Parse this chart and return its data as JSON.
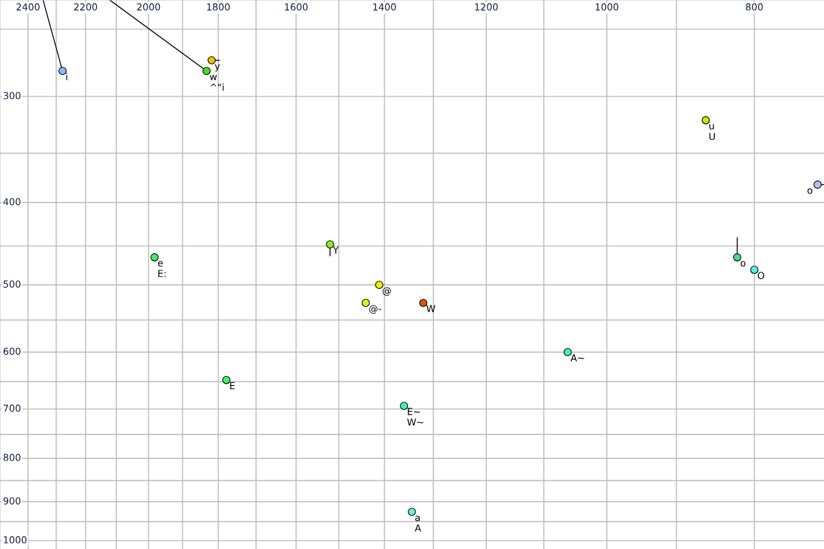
{
  "chart_data": {
    "type": "scatter",
    "log": "xy",
    "grid": true,
    "marker": "circle",
    "xlim": [
      2504,
      720
    ],
    "ylim": [
      1023,
      231
    ],
    "xticks": [
      2400,
      {
        "value": 2300,
        "label": null
      },
      2200,
      {
        "value": 2100,
        "label": null
      },
      2000,
      {
        "value": 1900,
        "label": null
      },
      1800,
      {
        "value": 1700,
        "label": null
      },
      1600,
      {
        "value": 1500,
        "label": null
      },
      1400,
      {
        "value": 1300,
        "label": null
      },
      1200,
      {
        "value": 1100,
        "label": null
      },
      1000,
      {
        "value": 900,
        "label": null
      },
      800
    ],
    "yticks": [
      {
        "value": 250,
        "label": null
      },
      300,
      {
        "value": 350,
        "label": null
      },
      400,
      {
        "value": 450,
        "label": null
      },
      500,
      {
        "value": 550,
        "label": null
      },
      600,
      {
        "value": 650,
        "label": null
      },
      700,
      {
        "value": 750,
        "label": null
      },
      800,
      {
        "value": 850,
        "label": null
      },
      900,
      {
        "value": 950,
        "label": null
      },
      1000
    ],
    "series": [
      {
        "type": "line",
        "color": "#000000",
        "marker": "none",
        "x": [
          2278,
          2346
        ],
        "values": [
          280,
          231
        ]
      },
      {
        "type": "line",
        "color": "#000000",
        "marker": "none",
        "x": [
          1832,
          2121
        ],
        "values": [
          280,
          231
        ]
      },
      {
        "type": "line",
        "color": "#000000",
        "marker": "none",
        "x": [
          1818,
          1797
        ],
        "values": [
          272,
          272
        ]
      },
      {
        "type": "line",
        "color": "#000000",
        "marker": "none",
        "x": [
          1520,
          1520
        ],
        "values": [
          448,
          462
        ]
      },
      {
        "type": "line",
        "color": "#000000",
        "marker": "none",
        "x": [
          821,
          821
        ],
        "values": [
          464,
          440
        ]
      },
      {
        "type": "line",
        "color": "#000000",
        "marker": "none",
        "x": [
          727,
          720
        ],
        "values": [
          381,
          381
        ]
      },
      {
        "x": [
          2278,
          1818,
          1832,
          1982,
          1520,
          1411,
          1440,
          1320,
          1778,
          1061,
          1359,
          1343,
          861,
          821,
          800,
          727
        ],
        "values": [
          280,
          272,
          280,
          464,
          448,
          500,
          525,
          525,
          647,
          600,
          694,
          925,
          320,
          464,
          480,
          381
        ],
        "colors": [
          "#88bbff",
          "#f0c000",
          "#44dd22",
          "#44ee66",
          "#88ee22",
          "#eeee00",
          "#ddee22",
          "#dd5500",
          "#44ee66",
          "#44eebb",
          "#44eebb",
          "#66eedd",
          "#bbee00",
          "#44dd88",
          "#55eeee",
          "#bbbbee"
        ]
      }
    ],
    "annotations": [
      {
        "text": "i",
        "x": 2278,
        "y": 280
      },
      {
        "text": "y",
        "x": 1818,
        "y": 272
      },
      {
        "text": "w",
        "x": 1832,
        "y": 280
      },
      {
        "text": "^\"i",
        "x": 1832,
        "y": 280
      },
      {
        "text": "e",
        "x": 1982,
        "y": 464
      },
      {
        "text": "E:",
        "x": 1982,
        "y": 464
      },
      {
        "text": "Y",
        "x": 1520,
        "y": 448
      },
      {
        "text": "@",
        "x": 1411,
        "y": 500
      },
      {
        "text": "@-",
        "x": 1440,
        "y": 525
      },
      {
        "text": "W",
        "x": 1320,
        "y": 525
      },
      {
        "text": "E",
        "x": 1778,
        "y": 647
      },
      {
        "text": "A~",
        "x": 1061,
        "y": 600
      },
      {
        "text": "E~",
        "x": 1359,
        "y": 694
      },
      {
        "text": "W~",
        "x": 1359,
        "y": 694
      },
      {
        "text": "a",
        "x": 1343,
        "y": 925
      },
      {
        "text": "A",
        "x": 1343,
        "y": 925
      },
      {
        "text": "u",
        "x": 861,
        "y": 320
      },
      {
        "text": "U",
        "x": 861,
        "y": 320
      },
      {
        "text": "o",
        "x": 821,
        "y": 464
      },
      {
        "text": "O",
        "x": 800,
        "y": 480
      },
      {
        "text": "o",
        "x": 727,
        "y": 381
      }
    ]
  }
}
